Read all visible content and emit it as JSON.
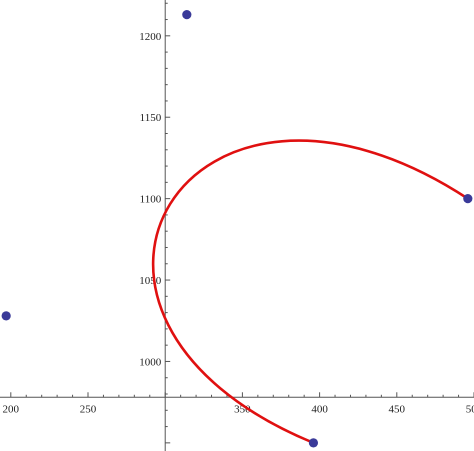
{
  "chart_data": {
    "type": "scatter",
    "title": "",
    "xlabel": "",
    "ylabel": "",
    "xlim": [
      193,
      500
    ],
    "ylim": [
      945,
      1222
    ],
    "x_axis_at_y": 978,
    "y_axis_at_x": 300,
    "x_ticks": [
      200,
      250,
      300,
      350,
      400,
      450,
      500
    ],
    "x_tick_labels": [
      "200",
      "250",
      "",
      "350",
      "400",
      "450",
      "500"
    ],
    "y_ticks": [
      1000,
      1050,
      1100,
      1150,
      1200
    ],
    "y_tick_labels": [
      "1000",
      "1050",
      "1100",
      "1150",
      "1200"
    ],
    "grid": false,
    "series": [
      {
        "kind": "points",
        "color": "#3a3a99",
        "points": [
          {
            "x": 197,
            "y": 1028
          },
          {
            "x": 314,
            "y": 1213
          },
          {
            "x": 496,
            "y": 1100
          },
          {
            "x": 396,
            "y": 950
          }
        ]
      },
      {
        "kind": "curve",
        "color": "#e01010",
        "control_points": [
          {
            "x": 396,
            "y": 950
          },
          {
            "x": 197,
            "y": 1028
          },
          {
            "x": 314,
            "y": 1213
          },
          {
            "x": 496,
            "y": 1100
          }
        ]
      }
    ]
  }
}
